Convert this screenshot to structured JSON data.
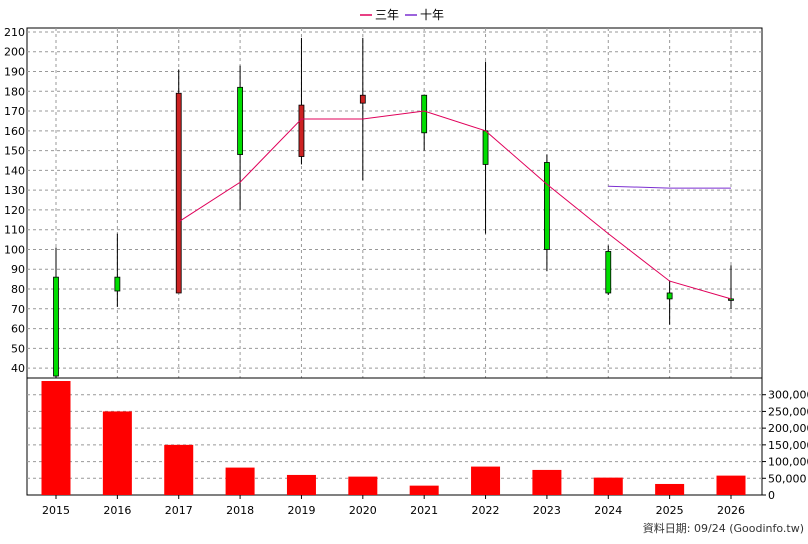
{
  "chart_data": [
    {
      "type": "candlestick",
      "categories": [
        "2015",
        "2016",
        "2017",
        "2018",
        "2019",
        "2020",
        "2021",
        "2022",
        "2023",
        "2024",
        "2025",
        "2026"
      ],
      "candles": [
        {
          "open": 36,
          "close": 86,
          "high": 101,
          "low": 34
        },
        {
          "open": 79,
          "close": 86,
          "high": 108,
          "low": 71
        },
        {
          "open": 179,
          "close": 78,
          "high": 191,
          "low": 78
        },
        {
          "open": 148,
          "close": 182,
          "high": 193,
          "low": 120
        },
        {
          "open": 173,
          "close": 147,
          "high": 207,
          "low": 143
        },
        {
          "open": 178,
          "close": 174,
          "high": 207,
          "low": 135
        },
        {
          "open": 159,
          "close": 178,
          "high": 178,
          "low": 150
        },
        {
          "open": 143,
          "close": 160,
          "high": 195,
          "low": 108
        },
        {
          "open": 100,
          "close": 144,
          "high": 148,
          "low": 89
        },
        {
          "open": 78,
          "close": 99,
          "high": 102,
          "low": 77
        },
        {
          "open": 75,
          "close": 78,
          "high": 84,
          "low": 62
        },
        {
          "open": 75,
          "close": 75,
          "high": 92,
          "low": 70
        }
      ],
      "candle_colors": {
        "up": "#00dd00",
        "down": "#cc2222"
      },
      "series": [
        {
          "name": "三年",
          "color": "#e0005a",
          "values": [
            null,
            null,
            114,
            134,
            166,
            166,
            170,
            160,
            133,
            108,
            84,
            75
          ]
        },
        {
          "name": "十年",
          "color": "#7b2fd0",
          "values": [
            null,
            null,
            null,
            null,
            null,
            null,
            null,
            null,
            null,
            132,
            131,
            131
          ]
        }
      ],
      "yticks": [
        40,
        50,
        60,
        70,
        80,
        90,
        100,
        110,
        120,
        130,
        140,
        150,
        160,
        170,
        180,
        190,
        200,
        210
      ],
      "ylim": [
        35,
        212
      ],
      "grid": true,
      "legend": "top-center"
    },
    {
      "type": "bar",
      "categories": [
        "2015",
        "2016",
        "2017",
        "2018",
        "2019",
        "2020",
        "2021",
        "2022",
        "2023",
        "2024",
        "2025",
        "2026"
      ],
      "values": [
        341000,
        250000,
        150000,
        82000,
        60000,
        55000,
        28000,
        85000,
        75000,
        52000,
        33000,
        58000
      ],
      "color": "#ff0000",
      "yticks": [
        "0",
        "50,000",
        "100,000",
        "150,000",
        "200,000",
        "250,000",
        "300,000"
      ],
      "ytick_values": [
        0,
        50000,
        100000,
        150000,
        200000,
        250000,
        300000
      ],
      "ylim": [
        0,
        350000
      ],
      "grid": true
    }
  ],
  "source_note": "資料日期: 09/24 (Goodinfo.tw)"
}
